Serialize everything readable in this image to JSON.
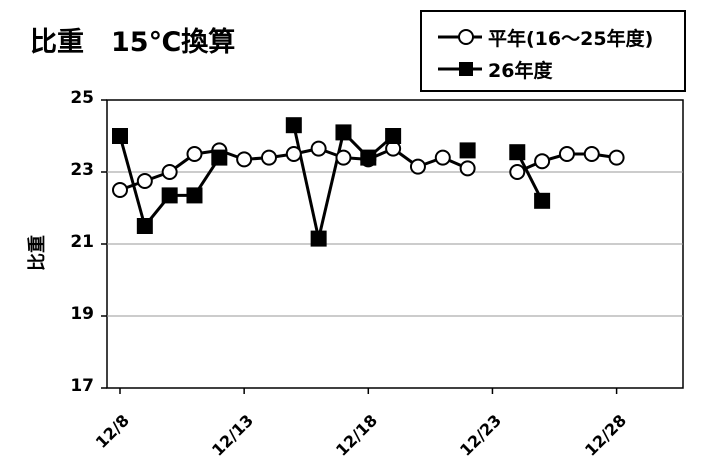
{
  "chart_data": {
    "type": "line",
    "title": "比重　15℃換算",
    "ylabel": "比重",
    "xlabel": "",
    "ylim": [
      17,
      25
    ],
    "yticks": [
      "25",
      "23",
      "21",
      "19",
      "17"
    ],
    "xticks": [
      "12/8",
      "12/13",
      "12/18",
      "12/23",
      "12/28"
    ],
    "x": [
      "12/8",
      "12/9",
      "12/10",
      "12/11",
      "12/12",
      "12/13",
      "12/14",
      "12/15",
      "12/16",
      "12/17",
      "12/18",
      "12/19",
      "12/20",
      "12/21",
      "12/22",
      "12/23",
      "12/24",
      "12/25",
      "12/26",
      "12/27",
      "12/28"
    ],
    "grid": true,
    "legend_position": "top-right",
    "series": [
      {
        "name": "平年(16～25年度)",
        "marker": "circle",
        "color": "#000000",
        "values": [
          22.5,
          22.75,
          23.0,
          23.5,
          23.6,
          23.35,
          23.4,
          23.5,
          23.65,
          23.4,
          23.35,
          23.65,
          23.15,
          23.4,
          23.1,
          null,
          23.0,
          23.3,
          23.5,
          23.5,
          23.4
        ]
      },
      {
        "name": "26年度",
        "marker": "square",
        "color": "#000000",
        "values": [
          24.0,
          21.5,
          22.35,
          22.35,
          23.4,
          null,
          null,
          24.3,
          21.15,
          24.1,
          23.4,
          24.0,
          null,
          null,
          23.6,
          null,
          23.55,
          22.2,
          null,
          null,
          null
        ]
      }
    ]
  }
}
